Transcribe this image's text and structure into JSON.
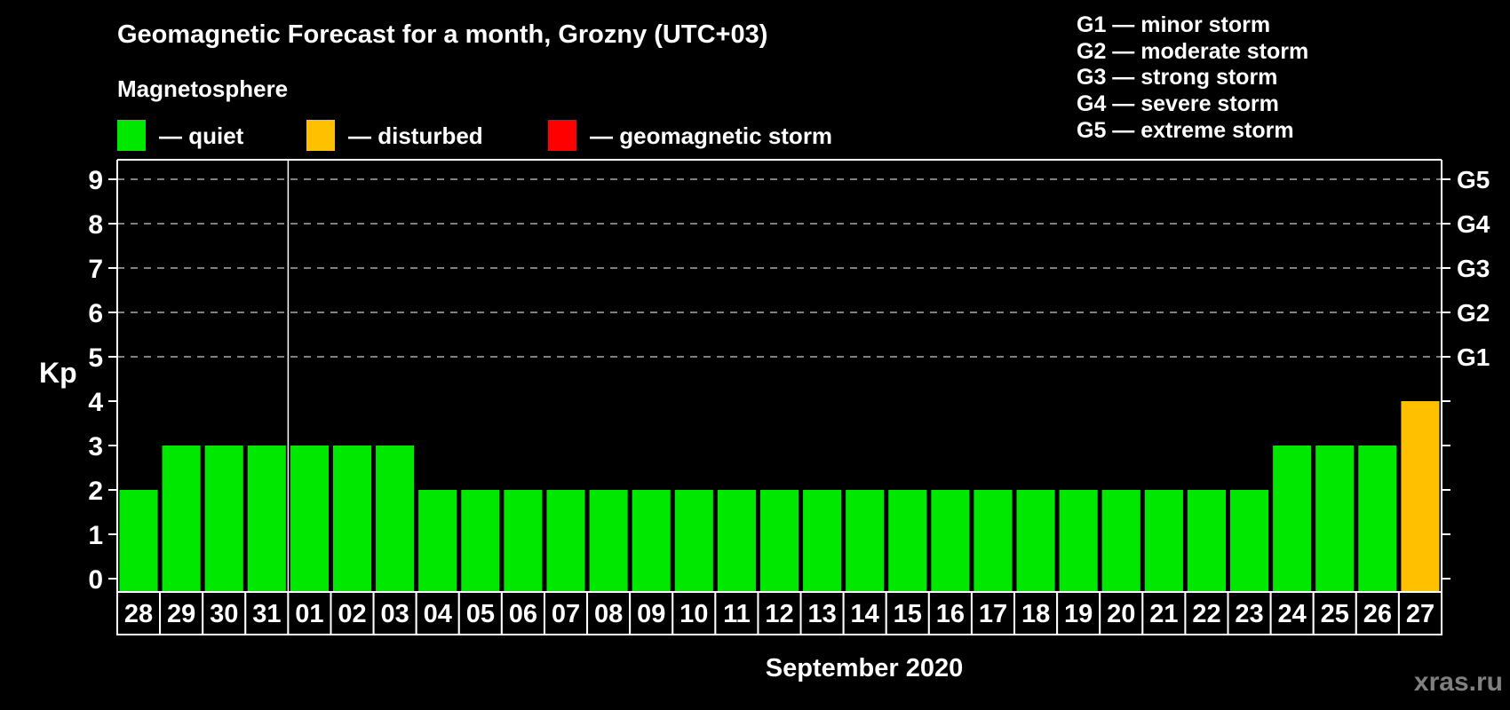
{
  "chart_data": {
    "type": "bar",
    "title": "Geomagnetic Forecast for a month, Grozny (UTC+03)",
    "subtitle": "Magnetosphere",
    "xlabel": "September 2020",
    "ylabel": "Kp",
    "ylim": [
      0,
      9.5
    ],
    "yticks": [
      0,
      1,
      2,
      3,
      4,
      5,
      6,
      7,
      8,
      9
    ],
    "grid_kp_levels": [
      5,
      6,
      7,
      8,
      9
    ],
    "right_axis": [
      {
        "kp": 5,
        "label": "G1"
      },
      {
        "kp": 6,
        "label": "G2"
      },
      {
        "kp": 7,
        "label": "G3"
      },
      {
        "kp": 8,
        "label": "G4"
      },
      {
        "kp": 9,
        "label": "G5"
      }
    ],
    "categories": [
      "28",
      "29",
      "30",
      "31",
      "01",
      "02",
      "03",
      "04",
      "05",
      "06",
      "07",
      "08",
      "09",
      "10",
      "11",
      "12",
      "13",
      "14",
      "15",
      "16",
      "17",
      "18",
      "19",
      "20",
      "21",
      "22",
      "23",
      "24",
      "25",
      "26",
      "27"
    ],
    "values": [
      2,
      3,
      3,
      3,
      3,
      3,
      3,
      2,
      2,
      2,
      2,
      2,
      2,
      2,
      2,
      2,
      2,
      2,
      2,
      2,
      2,
      2,
      2,
      2,
      2,
      2,
      2,
      3,
      3,
      3,
      4
    ],
    "statuses": [
      "quiet",
      "quiet",
      "quiet",
      "quiet",
      "quiet",
      "quiet",
      "quiet",
      "quiet",
      "quiet",
      "quiet",
      "quiet",
      "quiet",
      "quiet",
      "quiet",
      "quiet",
      "quiet",
      "quiet",
      "quiet",
      "quiet",
      "quiet",
      "quiet",
      "quiet",
      "quiet",
      "quiet",
      "quiet",
      "quiet",
      "quiet",
      "quiet",
      "quiet",
      "quiet",
      "disturbed"
    ],
    "month_separator_after_index": 3,
    "legend_position": "top",
    "grid": "dashed horizontal at Kp 5-9"
  },
  "legend": {
    "items": [
      {
        "key": "quiet",
        "label": "— quiet",
        "color": "#00e800"
      },
      {
        "key": "disturbed",
        "label": "— disturbed",
        "color": "#ffc000"
      },
      {
        "key": "storm",
        "label": "— geomagnetic storm",
        "color": "#ff0000"
      }
    ]
  },
  "g_legend": [
    "G1 — minor storm",
    "G2 — moderate storm",
    "G3 — strong storm",
    "G4 — severe storm",
    "G5 — extreme storm"
  ],
  "watermark": "xras.ru",
  "colors": {
    "quiet": "#00e800",
    "disturbed": "#ffc000",
    "storm": "#ff0000",
    "grid": "#aaaaaa",
    "axis": "#ffffff",
    "text": "#ffffff",
    "watermark": "#808080",
    "background": "#000000"
  }
}
